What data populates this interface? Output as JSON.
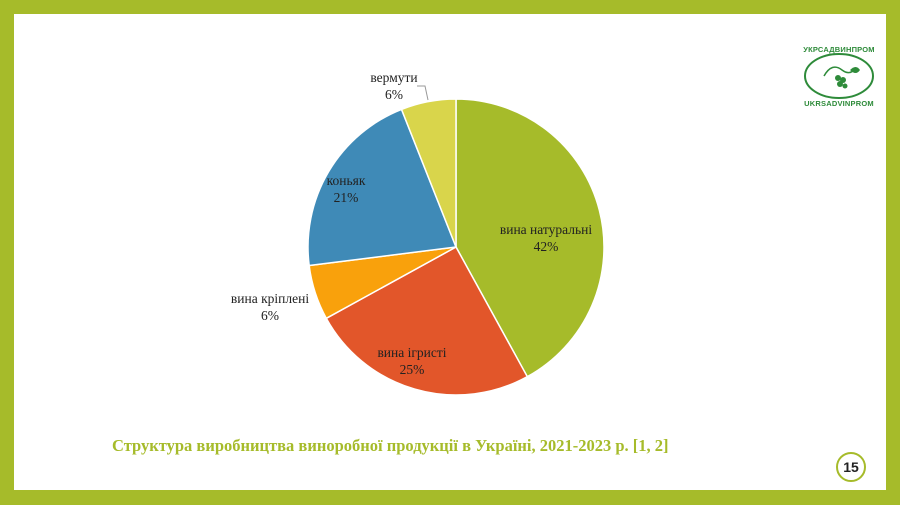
{
  "logo": {
    "text_top": "УКРСАДВИНПРОМ",
    "text_bottom": "UKRSADVINPROM"
  },
  "caption": "Структура виробництва виноробної продукції  в Україні, 2021-2023 р. [1, 2]",
  "page_number": "15",
  "colors": {
    "frame": "#a6bb2a",
    "slice_colors": [
      "#a6bb2a",
      "#e2562a",
      "#f9a10c",
      "#3f8ab7",
      "#d9d54b"
    ]
  },
  "chart_data": {
    "type": "pie",
    "title": "",
    "start_angle_deg": 0,
    "direction": "clockwise",
    "slices": [
      {
        "label": "вина натуральні",
        "value": 42,
        "display": "42%"
      },
      {
        "label": "вина ігристі",
        "value": 25,
        "display": "25%"
      },
      {
        "label": "вина кріплені",
        "value": 6,
        "display": "6%"
      },
      {
        "label": "коньяк",
        "value": 21,
        "display": "21%"
      },
      {
        "label": "вермути",
        "value": 6,
        "display": "6%"
      }
    ],
    "legend": "none",
    "labels_position": "inside-or-outside"
  }
}
